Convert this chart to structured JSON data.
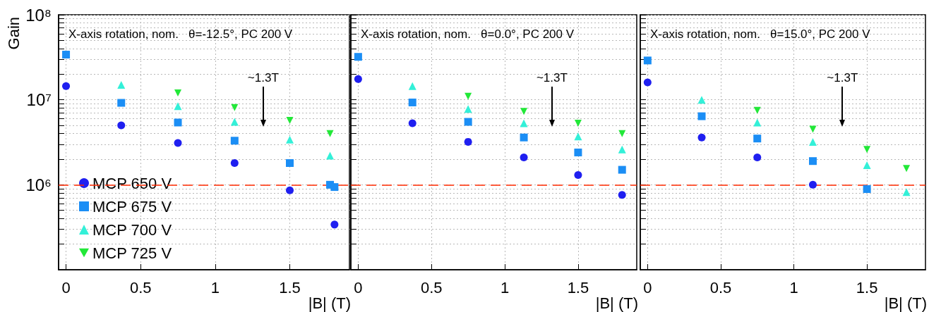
{
  "chart_data": [
    {
      "type": "scatter",
      "xlabel": "|B| (T)",
      "ylabel": "Gain",
      "log": "y",
      "grid": true,
      "legend": "bottom left",
      "xlim": [
        -0.05,
        1.9
      ],
      "ylim": [
        100000,
        100000000
      ],
      "xticks": [
        0,
        0.5,
        1,
        1.5
      ],
      "yticks": [
        {
          "value": 200000,
          "label": null
        },
        {
          "value": 300000,
          "label": null
        },
        {
          "value": 400000,
          "label": null
        },
        {
          "value": 500000,
          "label": null
        },
        {
          "value": 600000,
          "label": null
        },
        {
          "value": 700000,
          "label": null
        },
        {
          "value": 800000,
          "label": null
        },
        {
          "value": 900000,
          "label": null
        },
        {
          "value": 1000000,
          "label": "10⁶"
        },
        {
          "value": 2000000,
          "label": null
        },
        {
          "value": 3000000,
          "label": null
        },
        {
          "value": 4000000,
          "label": null
        },
        {
          "value": 5000000,
          "label": null
        },
        {
          "value": 6000000,
          "label": null
        },
        {
          "value": 7000000,
          "label": null
        },
        {
          "value": 8000000,
          "label": null
        },
        {
          "value": 9000000,
          "label": null
        },
        {
          "value": 10000000,
          "label": "10⁷"
        },
        {
          "value": 20000000,
          "label": null
        },
        {
          "value": 30000000,
          "label": null
        },
        {
          "value": 40000000,
          "label": null
        },
        {
          "value": 50000000,
          "label": null
        },
        {
          "value": 60000000,
          "label": null
        },
        {
          "value": 70000000,
          "label": null
        },
        {
          "value": 80000000,
          "label": null
        },
        {
          "value": 90000000,
          "label": null
        },
        {
          "value": 100000000,
          "label": "10⁸"
        }
      ],
      "series": [
        {
          "name": "MCP 650 V",
          "color": "#1f1ff0",
          "marker": "circle",
          "x": [
            0,
            0.37,
            0.75,
            1.13,
            1.5,
            1.8
          ],
          "values": [
            14500000,
            5000000,
            3100000,
            1800000,
            860000,
            340000
          ]
        },
        {
          "name": "MCP 675 V",
          "color": "#1b8ef5",
          "marker": "square",
          "x": [
            0,
            0.37,
            0.75,
            1.13,
            1.5,
            1.77,
            1.8
          ],
          "values": [
            34000000,
            9200000,
            5400000,
            3300000,
            1800000,
            1000000,
            940000
          ]
        },
        {
          "name": "MCP 700 V",
          "color": "#33f0d8",
          "marker": "triangle",
          "x": [
            0.37,
            0.75,
            1.13,
            1.5,
            1.77
          ],
          "values": [
            15000000,
            8400000,
            5500000,
            3400000,
            2200000
          ]
        },
        {
          "name": "MCP 725 V",
          "color": "#22e838",
          "marker": "triangle-down",
          "x": [
            0.75,
            1.13,
            1.5,
            1.77
          ],
          "values": [
            12000000,
            8100000,
            5700000,
            4000000
          ]
        }
      ],
      "ref_lines": [
        {
          "axis": "y",
          "value": 1000000,
          "color": "#ff2a00",
          "line_style": "dashed"
        }
      ],
      "annotations": [
        "X-axis rotation, nom.   θ=-12.5°, PC 200 V",
        "~1.3T"
      ]
    },
    {
      "type": "scatter",
      "xlabel": "|B| (T)",
      "log": "y",
      "grid": true,
      "tick_labels": "x",
      "xlim": [
        -0.05,
        1.9
      ],
      "ylim": [
        100000,
        100000000
      ],
      "xticks": [
        0,
        0.5,
        1,
        1.5
      ],
      "yticks": [
        {
          "value": 200000,
          "label": null
        },
        {
          "value": 300000,
          "label": null
        },
        {
          "value": 400000,
          "label": null
        },
        {
          "value": 500000,
          "label": null
        },
        {
          "value": 600000,
          "label": null
        },
        {
          "value": 700000,
          "label": null
        },
        {
          "value": 800000,
          "label": null
        },
        {
          "value": 900000,
          "label": null
        },
        {
          "value": 1000000,
          "label": null
        },
        {
          "value": 2000000,
          "label": null
        },
        {
          "value": 3000000,
          "label": null
        },
        {
          "value": 4000000,
          "label": null
        },
        {
          "value": 5000000,
          "label": null
        },
        {
          "value": 6000000,
          "label": null
        },
        {
          "value": 7000000,
          "label": null
        },
        {
          "value": 8000000,
          "label": null
        },
        {
          "value": 9000000,
          "label": null
        },
        {
          "value": 10000000,
          "label": null
        },
        {
          "value": 20000000,
          "label": null
        },
        {
          "value": 30000000,
          "label": null
        },
        {
          "value": 40000000,
          "label": null
        },
        {
          "value": 50000000,
          "label": null
        },
        {
          "value": 60000000,
          "label": null
        },
        {
          "value": 70000000,
          "label": null
        },
        {
          "value": 80000000,
          "label": null
        },
        {
          "value": 90000000,
          "label": null
        },
        {
          "value": 100000000,
          "label": null
        }
      ],
      "series": [
        {
          "color": "#1f1ff0",
          "marker": "circle",
          "x": [
            0,
            0.37,
            0.75,
            1.13,
            1.5,
            1.8
          ],
          "values": [
            17500000,
            5300000,
            3200000,
            2100000,
            1300000,
            760000
          ]
        },
        {
          "color": "#1b8ef5",
          "marker": "square",
          "x": [
            0,
            0.37,
            0.75,
            1.13,
            1.5,
            1.8
          ],
          "values": [
            32000000,
            9300000,
            5500000,
            3600000,
            2400000,
            1500000
          ]
        },
        {
          "color": "#33f0d8",
          "marker": "triangle",
          "x": [
            0.37,
            0.75,
            1.13,
            1.5,
            1.8
          ],
          "values": [
            14500000,
            7800000,
            5300000,
            3700000,
            2600000
          ]
        },
        {
          "color": "#22e838",
          "marker": "triangle-down",
          "x": [
            0.75,
            1.13,
            1.5,
            1.8
          ],
          "values": [
            11000000,
            7300000,
            5300000,
            4000000
          ]
        }
      ],
      "ref_lines": [
        {
          "axis": "y",
          "value": 1000000,
          "color": "#ff2a00",
          "line_style": "dashed"
        }
      ],
      "annotations": [
        "X-axis rotation, nom.   θ=0.0°, PC 200 V",
        "~1.3T"
      ]
    },
    {
      "type": "scatter",
      "xlabel": "|B| (T)",
      "log": "y",
      "grid": true,
      "tick_labels": "x",
      "xlim": [
        -0.05,
        1.9
      ],
      "ylim": [
        100000,
        100000000
      ],
      "xticks": [
        0,
        0.5,
        1,
        1.5
      ],
      "yticks": [
        {
          "value": 200000,
          "label": null
        },
        {
          "value": 300000,
          "label": null
        },
        {
          "value": 400000,
          "label": null
        },
        {
          "value": 500000,
          "label": null
        },
        {
          "value": 600000,
          "label": null
        },
        {
          "value": 700000,
          "label": null
        },
        {
          "value": 800000,
          "label": null
        },
        {
          "value": 900000,
          "label": null
        },
        {
          "value": 1000000,
          "label": null
        },
        {
          "value": 2000000,
          "label": null
        },
        {
          "value": 3000000,
          "label": null
        },
        {
          "value": 4000000,
          "label": null
        },
        {
          "value": 5000000,
          "label": null
        },
        {
          "value": 6000000,
          "label": null
        },
        {
          "value": 7000000,
          "label": null
        },
        {
          "value": 8000000,
          "label": null
        },
        {
          "value": 9000000,
          "label": null
        },
        {
          "value": 10000000,
          "label": null
        },
        {
          "value": 20000000,
          "label": null
        },
        {
          "value": 30000000,
          "label": null
        },
        {
          "value": 40000000,
          "label": null
        },
        {
          "value": 50000000,
          "label": null
        },
        {
          "value": 60000000,
          "label": null
        },
        {
          "value": 70000000,
          "label": null
        },
        {
          "value": 80000000,
          "label": null
        },
        {
          "value": 90000000,
          "label": null
        },
        {
          "value": 100000000,
          "label": null
        }
      ],
      "series": [
        {
          "color": "#1f1ff0",
          "marker": "circle",
          "x": [
            0,
            0.37,
            0.75,
            1.13
          ],
          "values": [
            16000000,
            3600000,
            2100000,
            1000000
          ]
        },
        {
          "color": "#1b8ef5",
          "marker": "square",
          "x": [
            0,
            0.37,
            0.75,
            1.13,
            1.5
          ],
          "values": [
            29000000,
            6400000,
            3500000,
            1900000,
            890000
          ]
        },
        {
          "color": "#33f0d8",
          "marker": "triangle",
          "x": [
            0.37,
            0.75,
            1.13,
            1.5,
            1.77
          ],
          "values": [
            10000000,
            5400000,
            3200000,
            1700000,
            820000
          ]
        },
        {
          "color": "#22e838",
          "marker": "triangle-down",
          "x": [
            0.75,
            1.13,
            1.5,
            1.77
          ],
          "values": [
            7500000,
            4500000,
            2600000,
            1550000
          ]
        }
      ],
      "ref_lines": [
        {
          "axis": "y",
          "value": 1000000,
          "color": "#ff2a00",
          "line_style": "dashed"
        }
      ],
      "annotations": [
        "X-axis rotation, nom.   θ=15.0°, PC 200 V",
        "~1.3T"
      ]
    }
  ]
}
